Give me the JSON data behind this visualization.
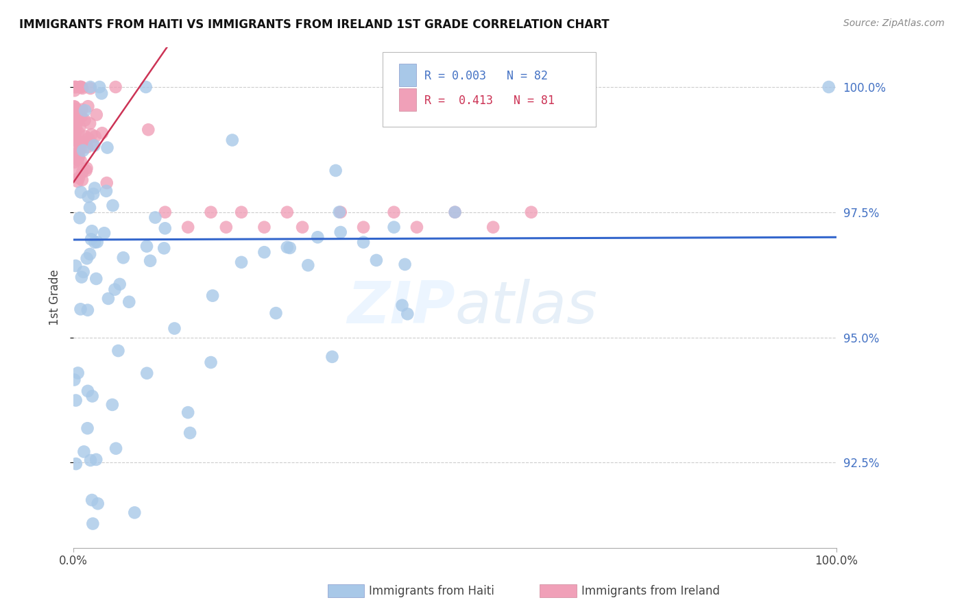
{
  "title": "IMMIGRANTS FROM HAITI VS IMMIGRANTS FROM IRELAND 1ST GRADE CORRELATION CHART",
  "source": "Source: ZipAtlas.com",
  "ylabel": "1st Grade",
  "legend_blue_R": "0.003",
  "legend_blue_N": "82",
  "legend_pink_R": "0.413",
  "legend_pink_N": "81",
  "legend_blue_label": "Immigrants from Haiti",
  "legend_pink_label": "Immigrants from Ireland",
  "blue_color": "#a8c8e8",
  "pink_color": "#f0a0b8",
  "regression_blue_color": "#3366cc",
  "regression_pink_color": "#cc3355",
  "ytick_vals": [
    0.925,
    0.95,
    0.975,
    1.0
  ],
  "ytick_labels": [
    "92.5%",
    "95.0%",
    "97.5%",
    "100.0%"
  ],
  "ymin": 0.908,
  "ymax": 1.008,
  "xmin": 0.0,
  "xmax": 1.0,
  "blue_regression_intercept": 0.9695,
  "blue_regression_slope": 0.0005,
  "pink_regression_intercept": 0.981,
  "pink_regression_slope": 0.22
}
